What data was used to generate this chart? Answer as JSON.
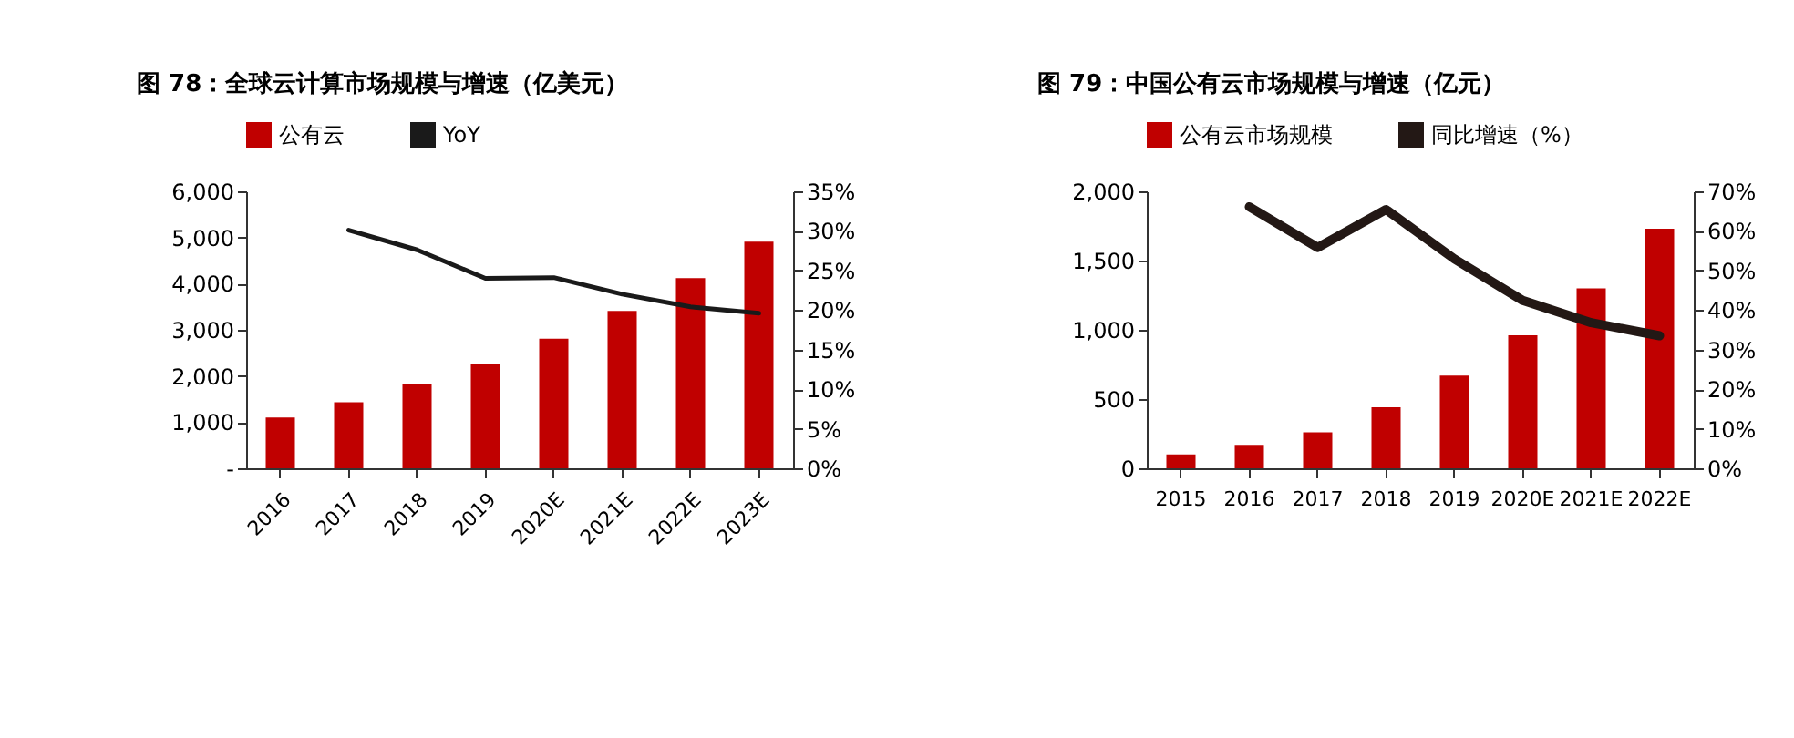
{
  "chart_data": [
    {
      "type": "bar",
      "title": "图 78：全球云计算市场规模与增速（亿美元）",
      "categories": [
        "2016",
        "2017",
        "2018",
        "2019",
        "2020E",
        "2021E",
        "2022E",
        "2023E"
      ],
      "series": [
        {
          "name": "公有云",
          "color": "#c00000",
          "values": [
            1100,
            1430,
            1830,
            2270,
            2810,
            3410,
            4120,
            4910
          ]
        },
        {
          "name": "YoY",
          "type": "line",
          "axis": "y2",
          "color": "#1a1a1a",
          "values": [
            null,
            30.1,
            27.6,
            24.0,
            24.1,
            22.0,
            20.4,
            19.6
          ]
        }
      ],
      "ylim": [
        0,
        6000
      ],
      "yticks": [
        {
          "value": 0,
          "label": "-"
        },
        {
          "value": 1000,
          "label": "1,000"
        },
        {
          "value": 2000,
          "label": "2,000"
        },
        {
          "value": 3000,
          "label": "3,000"
        },
        {
          "value": 4000,
          "label": "4,000"
        },
        {
          "value": 5000,
          "label": "5,000"
        },
        {
          "value": 6000,
          "label": "6,000"
        }
      ],
      "y2lim": [
        0,
        35
      ],
      "y2ticks": [
        {
          "value": 0,
          "label": "0%"
        },
        {
          "value": 5,
          "label": "5%"
        },
        {
          "value": 10,
          "label": "10%"
        },
        {
          "value": 15,
          "label": "15%"
        },
        {
          "value": 20,
          "label": "20%"
        },
        {
          "value": 25,
          "label": "25%"
        },
        {
          "value": 30,
          "label": "30%"
        },
        {
          "value": 35,
          "label": "35%"
        }
      ],
      "legend": "top",
      "grid": false
    },
    {
      "type": "bar",
      "title": "图 79：中国公有云市场规模与增速（亿元）",
      "categories": [
        "2015",
        "2016",
        "2017",
        "2018",
        "2019",
        "2020E",
        "2021E",
        "2022E"
      ],
      "series": [
        {
          "name": "公有云市场规模",
          "color": "#c00000",
          "values": [
            100,
            170,
            260,
            440,
            670,
            960,
            1300,
            1730
          ]
        },
        {
          "name": "同比增速（%）",
          "type": "line",
          "axis": "y2",
          "color": "#231815",
          "values": [
            null,
            66.1,
            55.8,
            65.4,
            52.9,
            42.4,
            36.8,
            33.5
          ]
        }
      ],
      "ylim": [
        0,
        2000
      ],
      "yticks": [
        0,
        {
          "value": 500,
          "label": "500"
        },
        {
          "value": 1000,
          "label": "1,000"
        },
        {
          "value": 1500,
          "label": "1,500"
        },
        {
          "value": 2000,
          "label": "2,000"
        }
      ],
      "y2lim": [
        0,
        70
      ],
      "y2ticks": [
        {
          "value": 0,
          "label": "0%"
        },
        {
          "value": 10,
          "label": "10%"
        },
        {
          "value": 20,
          "label": "20%"
        },
        {
          "value": 30,
          "label": "30%"
        },
        {
          "value": 40,
          "label": "40%"
        },
        {
          "value": 50,
          "label": "50%"
        },
        {
          "value": 60,
          "label": "60%"
        },
        {
          "value": 70,
          "label": "70%"
        }
      ],
      "legend": "top",
      "grid": false
    }
  ]
}
